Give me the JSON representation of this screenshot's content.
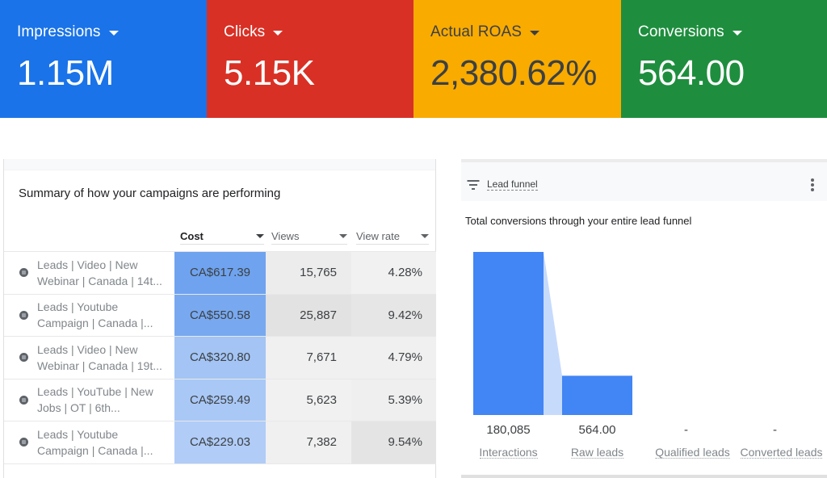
{
  "scorecards": [
    {
      "label": "Impressions",
      "value": "1.15M",
      "bg": "#1a73e8",
      "fg": "#ffffff"
    },
    {
      "label": "Clicks",
      "value": "5.15K",
      "bg": "#d93025",
      "fg": "#ffffff"
    },
    {
      "label": "Actual ROAS",
      "value": "2,380.62%",
      "bg": "#f9ab00",
      "fg": "#3c4043"
    },
    {
      "label": "Conversions",
      "value": "564.00",
      "bg": "#1e8e3e",
      "fg": "#ffffff"
    }
  ],
  "campaign_summary": {
    "title": "Summary of how your campaigns are performing",
    "columns": [
      "Cost",
      "Views",
      "View rate"
    ],
    "rows": [
      {
        "name_line1": "Leads | Video | New",
        "name_line2": "Webinar | Canada | 14t...",
        "cost": "CA$617.39",
        "views": "15,765",
        "view_rate": "4.28%",
        "cost_bg": "#6fa3ef",
        "views_bg": "#ececec",
        "rate_bg": "#f1f1f1"
      },
      {
        "name_line1": "Leads | Youtube",
        "name_line2": "Campaign | Canada |...",
        "cost": "CA$550.58",
        "views": "25,887",
        "view_rate": "9.42%",
        "cost_bg": "#78a9f0",
        "views_bg": "#e2e2e2",
        "rate_bg": "#e6e6e6"
      },
      {
        "name_line1": "Leads | Video | New",
        "name_line2": "Webinar | Canada | 19t...",
        "cost": "CA$320.80",
        "views": "7,671",
        "view_rate": "4.79%",
        "cost_bg": "#a3c4f5",
        "views_bg": "#f0f0f0",
        "rate_bg": "#f0f0f0"
      },
      {
        "name_line1": "Leads | YouTube | New",
        "name_line2": "Jobs | OT | 6th...",
        "cost": "CA$259.49",
        "views": "5,623",
        "view_rate": "5.39%",
        "cost_bg": "#a9c8f6",
        "views_bg": "#f1f1f1",
        "rate_bg": "#efefef"
      },
      {
        "name_line1": "Leads | Youtube",
        "name_line2": "Campaign | Canada |...",
        "cost": "CA$229.03",
        "views": "7,382",
        "view_rate": "9.54%",
        "cost_bg": "#b0ccf7",
        "views_bg": "#f0f0f0",
        "rate_bg": "#e4e4e4"
      }
    ]
  },
  "lead_funnel": {
    "header_title": "Lead funnel",
    "subtitle": "Total conversions through your entire lead funnel",
    "bar_color": "#4285f4",
    "connector_color": "#c6dafc"
  },
  "chart_data": {
    "type": "bar",
    "title": "Total conversions through your entire lead funnel",
    "categories": [
      "Interactions",
      "Raw leads",
      "Qualified leads",
      "Converted leads"
    ],
    "values": [
      180085,
      564.0,
      null,
      null
    ],
    "value_labels": [
      "180,085",
      "564.00",
      "-",
      "-"
    ],
    "xlabel": "",
    "ylabel": "",
    "scale": "log",
    "grid": false,
    "legend": "none"
  }
}
